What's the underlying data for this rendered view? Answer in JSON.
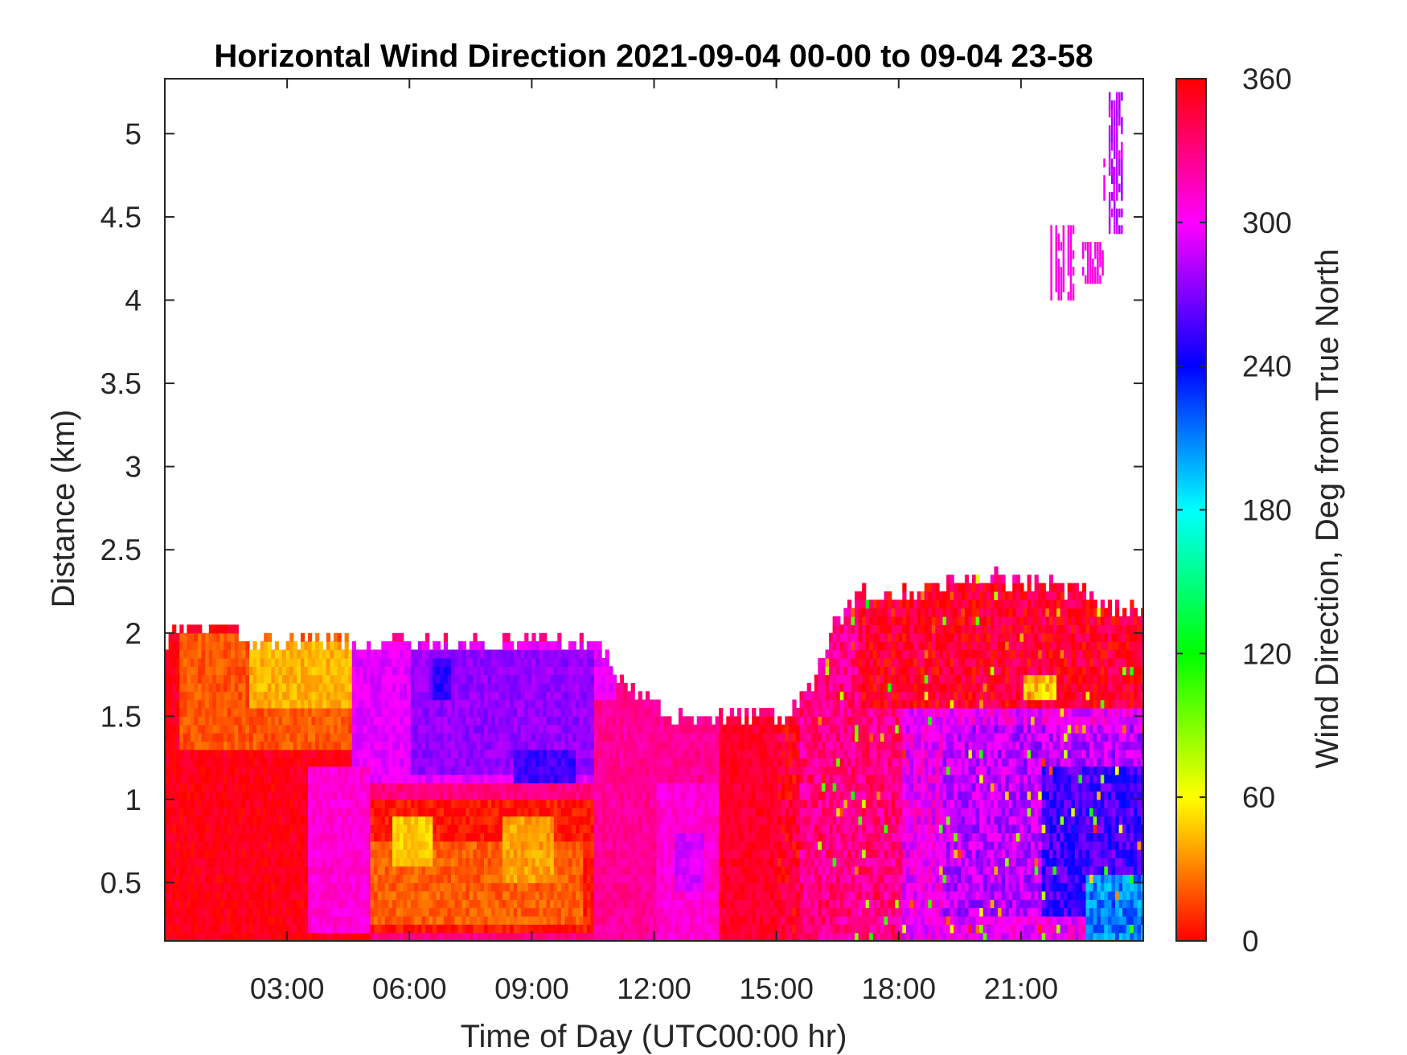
{
  "chart_data": {
    "type": "heatmap",
    "title": "Horizontal Wind Direction 2021-09-04 00-00 to 09-04 23-58",
    "xlabel": "Time of Day (UTC00:00 hr)",
    "ylabel": "Distance (km)",
    "colorbar_label": "Wind Direction, Deg from True North",
    "xlim": [
      0,
      24
    ],
    "ylim": [
      0.15,
      5.33
    ],
    "clim": [
      0,
      360
    ],
    "colormap": "hsv",
    "xticks": [
      {
        "value": 3,
        "label": "03:00"
      },
      {
        "value": 6,
        "label": "06:00"
      },
      {
        "value": 9,
        "label": "09:00"
      },
      {
        "value": 12,
        "label": "12:00"
      },
      {
        "value": 15,
        "label": "15:00"
      },
      {
        "value": 18,
        "label": "18:00"
      },
      {
        "value": 21,
        "label": "21:00"
      }
    ],
    "yticks": [
      {
        "value": 0.5,
        "label": "0.5"
      },
      {
        "value": 1,
        "label": "1"
      },
      {
        "value": 1.5,
        "label": "1.5"
      },
      {
        "value": 2,
        "label": "2"
      },
      {
        "value": 2.5,
        "label": "2.5"
      },
      {
        "value": 3,
        "label": "3"
      },
      {
        "value": 3.5,
        "label": "3.5"
      },
      {
        "value": 4,
        "label": "4"
      },
      {
        "value": 4.5,
        "label": "4.5"
      },
      {
        "value": 5,
        "label": "5"
      }
    ],
    "cticks": [
      {
        "value": 0,
        "label": "0"
      },
      {
        "value": 60,
        "label": "60"
      },
      {
        "value": 120,
        "label": "120"
      },
      {
        "value": 180,
        "label": "180"
      },
      {
        "value": 240,
        "label": "240"
      },
      {
        "value": 300,
        "label": "300"
      },
      {
        "value": 360,
        "label": "360"
      }
    ],
    "data_top_km": [
      [
        0,
        1.92
      ],
      [
        0.3,
        2.02
      ],
      [
        1.5,
        2.02
      ],
      [
        2,
        1.92
      ],
      [
        5,
        1.92
      ],
      [
        10.5,
        1.92
      ],
      [
        11,
        1.75
      ],
      [
        11.5,
        1.65
      ],
      [
        12,
        1.55
      ],
      [
        12.5,
        1.45
      ],
      [
        14,
        1.5
      ],
      [
        14.8,
        1.5
      ],
      [
        15.2,
        1.42
      ],
      [
        15.6,
        1.6
      ],
      [
        16,
        1.75
      ],
      [
        16.5,
        2.05
      ],
      [
        17,
        2.22
      ],
      [
        18.5,
        2.22
      ],
      [
        20,
        2.32
      ],
      [
        22.5,
        2.22
      ],
      [
        23.2,
        2.12
      ],
      [
        24,
        2.12
      ]
    ],
    "regions": [
      {
        "t": [
          0,
          5
        ],
        "z": [
          0.15,
          2.05
        ],
        "deg": 355
      },
      {
        "t": [
          0.3,
          5
        ],
        "z": [
          1.3,
          2.0
        ],
        "deg": 20
      },
      {
        "t": [
          2,
          4.5
        ],
        "z": [
          1.55,
          1.92
        ],
        "deg": 42
      },
      {
        "t": [
          4.5,
          11
        ],
        "z": [
          1.1,
          1.92
        ],
        "deg": 295
      },
      {
        "t": [
          6,
          10.5
        ],
        "z": [
          1.15,
          1.9
        ],
        "deg": 275
      },
      {
        "t": [
          6.5,
          7
        ],
        "z": [
          1.6,
          1.85
        ],
        "deg": 250
      },
      {
        "t": [
          8.5,
          10
        ],
        "z": [
          1.1,
          1.3
        ],
        "deg": 255
      },
      {
        "t": [
          3.5,
          5
        ],
        "z": [
          0.2,
          1.2
        ],
        "deg": 310
      },
      {
        "t": [
          5,
          10.5
        ],
        "z": [
          0.2,
          1.0
        ],
        "deg": 5
      },
      {
        "t": [
          5,
          10.2
        ],
        "z": [
          0.25,
          0.75
        ],
        "deg": 22
      },
      {
        "t": [
          5.5,
          6.5
        ],
        "z": [
          0.55,
          0.9
        ],
        "deg": 48
      },
      {
        "t": [
          8.2,
          9.5
        ],
        "z": [
          0.45,
          0.9
        ],
        "deg": 38
      },
      {
        "t": [
          10.5,
          13.5
        ],
        "z": [
          0.15,
          1.6
        ],
        "deg": 325
      },
      {
        "t": [
          12,
          14.5
        ],
        "z": [
          0.15,
          1.1
        ],
        "deg": 310
      },
      {
        "t": [
          12.5,
          13.2
        ],
        "z": [
          0.4,
          0.8
        ],
        "deg": 290
      },
      {
        "t": [
          13.5,
          15.8
        ],
        "z": [
          0.15,
          1.5
        ],
        "deg": 350
      },
      {
        "t": [
          15.5,
          18
        ],
        "z": [
          0.15,
          2.2
        ],
        "deg": 330
      },
      {
        "t": [
          17,
          24
        ],
        "z": [
          1.55,
          2.25
        ],
        "deg": 350
      },
      {
        "t": [
          18,
          24
        ],
        "z": [
          0.15,
          1.55
        ],
        "deg": 300
      },
      {
        "t": [
          19,
          24
        ],
        "z": [
          0.3,
          1.45
        ],
        "deg": 285
      },
      {
        "t": [
          21.5,
          24
        ],
        "z": [
          0.3,
          1.2
        ],
        "deg": 255
      },
      {
        "t": [
          22.5,
          24
        ],
        "z": [
          0.15,
          0.5
        ],
        "deg": 210
      },
      {
        "t": [
          21,
          21.8
        ],
        "z": [
          1.6,
          1.75
        ],
        "deg": 45
      }
    ],
    "upper_patches": [
      {
        "t": [
          21.6,
          22.4
        ],
        "z": [
          4.0,
          4.4
        ],
        "deg": 305
      },
      {
        "t": [
          22.5,
          23.0
        ],
        "z": [
          4.1,
          4.3
        ],
        "deg": 305
      },
      {
        "t": [
          22.9,
          23.35
        ],
        "z": [
          4.6,
          4.8
        ],
        "deg": 300
      },
      {
        "t": [
          23.15,
          23.45
        ],
        "z": [
          4.4,
          5.2
        ],
        "deg": 285
      }
    ]
  }
}
